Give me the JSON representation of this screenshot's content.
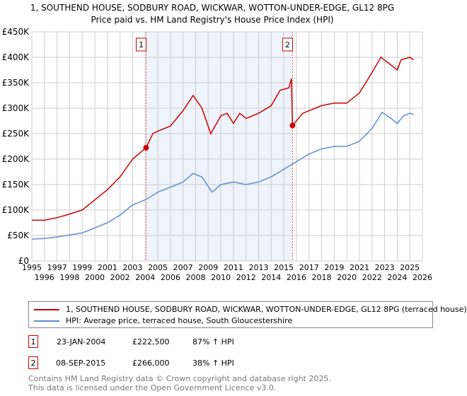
{
  "title": [
    "1, SOUTHEND HOUSE, SODBURY ROAD, WICKWAR, WOTTON-UNDER-EDGE, GL12 8PG",
    "Price paid vs. HM Land Registry's House Price Index (HPI)"
  ],
  "chart_data": {
    "type": "line",
    "xlim": [
      1995,
      2026
    ],
    "ylim": [
      0,
      450000
    ],
    "xticks": [
      "1995",
      "1996",
      "1997",
      "1998",
      "1999",
      "2000",
      "2001",
      "2002",
      "2003",
      "2004",
      "2005",
      "2006",
      "2007",
      "2008",
      "2009",
      "2010",
      "2011",
      "2012",
      "2013",
      "2014",
      "2015",
      "2016",
      "2017",
      "2018",
      "2019",
      "2020",
      "2021",
      "2022",
      "2023",
      "2024",
      "2025",
      "2026"
    ],
    "yticks": [
      {
        "v": 0,
        "l": "£0"
      },
      {
        "v": 50000,
        "l": "£50K"
      },
      {
        "v": 100000,
        "l": "£100K"
      },
      {
        "v": 150000,
        "l": "£150K"
      },
      {
        "v": 200000,
        "l": "£200K"
      },
      {
        "v": 250000,
        "l": "£250K"
      },
      {
        "v": 300000,
        "l": "£300K"
      },
      {
        "v": 350000,
        "l": "£350K"
      },
      {
        "v": 400000,
        "l": "£400K"
      },
      {
        "v": 450000,
        "l": "£450K"
      }
    ],
    "grid": true,
    "shaded_range": [
      2004.07,
      2015.69
    ],
    "series": [
      {
        "name": "1, SOUTHEND HOUSE, SODBURY ROAD, WICKWAR, WOTTON-UNDER-EDGE, GL12 8PG (terraced house)",
        "color": "#cc0000",
        "x": [
          1995,
          1996,
          1997,
          1998,
          1999,
          2000,
          2001,
          2002,
          2003,
          2004.07,
          2004.6,
          2005,
          2006,
          2007,
          2007.8,
          2008.5,
          2009.2,
          2010,
          2010.5,
          2011,
          2011.5,
          2012,
          2013,
          2014,
          2014.7,
          2015.4,
          2015.6,
          2015.69,
          2016.5,
          2017,
          2018,
          2019,
          2020,
          2021,
          2022,
          2022.7,
          2023.5,
          2024,
          2024.3,
          2025,
          2025.3
        ],
        "y": [
          80000,
          80000,
          85000,
          92000,
          100000,
          120000,
          140000,
          165000,
          200000,
          222500,
          250000,
          255000,
          265000,
          295000,
          325000,
          300000,
          250000,
          285000,
          290000,
          270000,
          290000,
          280000,
          290000,
          305000,
          335000,
          340000,
          358000,
          266000,
          290000,
          295000,
          305000,
          310000,
          310000,
          330000,
          370000,
          400000,
          385000,
          375000,
          395000,
          400000,
          395000
        ]
      },
      {
        "name": "HPI: Average price, terraced house, South Gloucestershire",
        "color": "#5b8fd0",
        "x": [
          1995,
          1996,
          1997,
          1998,
          1999,
          2000,
          2001,
          2002,
          2003,
          2004,
          2005,
          2006,
          2007,
          2007.8,
          2008.5,
          2009.3,
          2010,
          2011,
          2012,
          2013,
          2014,
          2015,
          2016,
          2017,
          2018,
          2019,
          2020,
          2021,
          2022,
          2022.8,
          2023.5,
          2024,
          2024.5,
          2025,
          2025.3
        ],
        "y": [
          43000,
          44000,
          47000,
          51000,
          55000,
          65000,
          75000,
          90000,
          110000,
          120000,
          135000,
          145000,
          155000,
          172000,
          165000,
          135000,
          150000,
          155000,
          150000,
          155000,
          165000,
          180000,
          195000,
          210000,
          220000,
          225000,
          225000,
          235000,
          260000,
          292000,
          280000,
          270000,
          285000,
          290000,
          288000
        ]
      }
    ],
    "sales": [
      {
        "label": "1",
        "x": 2004.07,
        "y": 222500
      },
      {
        "label": "2",
        "x": 2015.69,
        "y": 266000
      }
    ]
  },
  "legend": [
    "1, SOUTHEND HOUSE, SODBURY ROAD, WICKWAR, WOTTON-UNDER-EDGE, GL12 8PG (terraced house)",
    "HPI: Average price, terraced house, South Gloucestershire"
  ],
  "table": [
    {
      "n": "1",
      "date": "23-JAN-2004",
      "price": "£222,500",
      "hpi": "87% ↑ HPI"
    },
    {
      "n": "2",
      "date": "08-SEP-2015",
      "price": "£266,000",
      "hpi": "38% ↑ HPI"
    }
  ],
  "footer": [
    "Contains HM Land Registry data © Crown copyright and database right 2025.",
    "This data is licensed under the Open Government Licence v3.0."
  ]
}
